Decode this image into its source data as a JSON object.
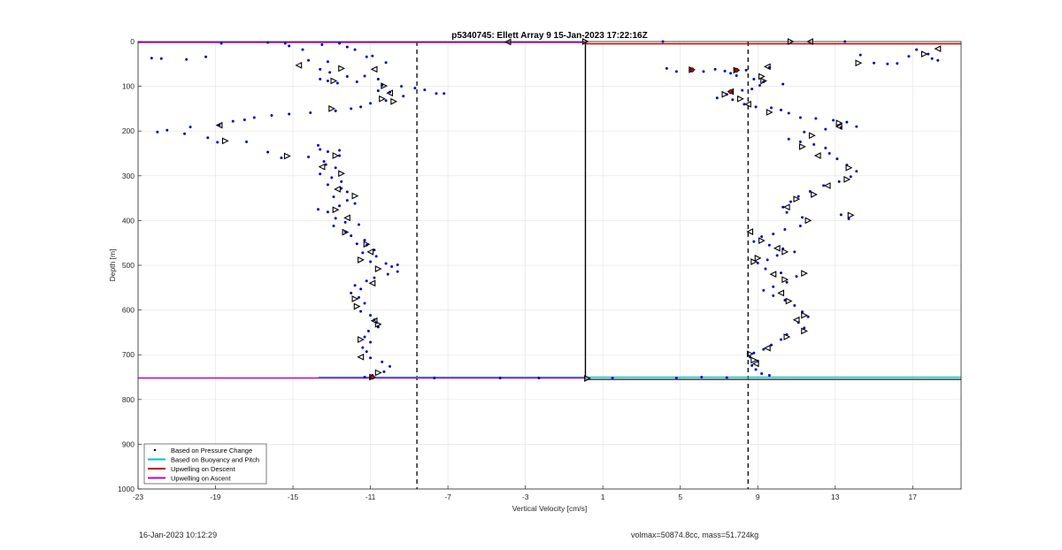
{
  "footer": {
    "timestamp": "16-Jan-2023 10:12:29",
    "stats": "volmax=50874.8cc, mass=51.724kg"
  },
  "chart_data": {
    "type": "scatter",
    "title": "p5340745: Ellett Array 9 15-Jan-2023 17:22:16Z",
    "xlabel": "Vertical Velocity [cm/s]",
    "ylabel": "Depth [m]",
    "xlim": [
      -23,
      19.5
    ],
    "ylim": [
      0,
      1000
    ],
    "y_reversed": true,
    "grid": true,
    "xticks": [
      -23,
      -19,
      -15,
      -11,
      -7,
      -3,
      1,
      5,
      9,
      13,
      17
    ],
    "yticks": [
      0,
      100,
      200,
      300,
      400,
      500,
      600,
      700,
      800,
      900,
      1000
    ],
    "legend": {
      "placement": "bottom-left",
      "entries": [
        {
          "label": "Based on Pressure Change",
          "marker": "dot",
          "color": "#000000"
        },
        {
          "label": "Based on Buoyancy and Pitch",
          "marker": "line",
          "color": "#00c0c0"
        },
        {
          "label": "Upwelling on Descent",
          "marker": "line",
          "color": "#c00000"
        },
        {
          "label": "Upwelling on Ascent",
          "marker": "line",
          "color": "#c000c0"
        }
      ]
    },
    "reference_lines": {
      "solid_vertical_x": 0.1,
      "dashed_vertical_x": [
        -8.6,
        8.5
      ],
      "surface_depth": 2,
      "bottom_depth": 752
    },
    "series": [
      {
        "name": "Based on Pressure Change",
        "color": "#0000ff",
        "points": [
          [
            -22.3,
            37
          ],
          [
            -21.8,
            38
          ],
          [
            -20.5,
            40
          ],
          [
            -19.5,
            34
          ],
          [
            -18.7,
            4
          ],
          [
            -16.3,
            2
          ],
          [
            -15.4,
            4
          ],
          [
            -15.2,
            10
          ],
          [
            -14.5,
            18
          ],
          [
            -14.2,
            42
          ],
          [
            -13.5,
            7
          ],
          [
            -13.2,
            45
          ],
          [
            -12.6,
            4
          ],
          [
            -12.2,
            12
          ],
          [
            -11.8,
            18
          ],
          [
            -11.2,
            34
          ],
          [
            -10.9,
            32
          ],
          [
            -10.2,
            47
          ],
          [
            -13.6,
            62
          ],
          [
            -13.1,
            69
          ],
          [
            -12.2,
            78
          ],
          [
            -11.3,
            77
          ],
          [
            -10.6,
            84
          ],
          [
            -13.6,
            84
          ],
          [
            -13.2,
            88
          ],
          [
            -12.7,
            93
          ],
          [
            -11.7,
            90
          ],
          [
            -10.4,
            98
          ],
          [
            -9.4,
            100
          ],
          [
            -8.7,
            104
          ],
          [
            -8.2,
            108
          ],
          [
            -7.6,
            116
          ],
          [
            -7.2,
            116
          ],
          [
            -10.6,
            110
          ],
          [
            -10.0,
            113
          ],
          [
            -9.3,
            122
          ],
          [
            -10.2,
            132
          ],
          [
            -11.0,
            138
          ],
          [
            -11.5,
            146
          ],
          [
            -12.0,
            150
          ],
          [
            -12.8,
            155
          ],
          [
            -14.1,
            159
          ],
          [
            -15.2,
            162
          ],
          [
            -16.1,
            165
          ],
          [
            -17.0,
            170
          ],
          [
            -17.5,
            175
          ],
          [
            -18.1,
            178
          ],
          [
            -18.8,
            186
          ],
          [
            -20.3,
            191
          ],
          [
            -21.5,
            198
          ],
          [
            -22.0,
            202
          ],
          [
            -20.6,
            206
          ],
          [
            -19.4,
            215
          ],
          [
            -18.9,
            225
          ],
          [
            -17.4,
            224
          ],
          [
            -16.3,
            247
          ],
          [
            -15.6,
            260
          ],
          [
            -14.2,
            258
          ],
          [
            -13.7,
            232
          ],
          [
            -13.6,
            241
          ],
          [
            -13.2,
            246
          ],
          [
            -12.6,
            243
          ],
          [
            -12.6,
            255
          ],
          [
            -13.4,
            268
          ],
          [
            -13.3,
            275
          ],
          [
            -12.8,
            282
          ],
          [
            -13.6,
            296
          ],
          [
            -13.0,
            304
          ],
          [
            -12.5,
            313
          ],
          [
            -13.2,
            320
          ],
          [
            -12.5,
            328
          ],
          [
            -12.2,
            336
          ],
          [
            -12.9,
            347
          ],
          [
            -12.2,
            355
          ],
          [
            -11.8,
            362
          ],
          [
            -12.6,
            367
          ],
          [
            -13.7,
            375
          ],
          [
            -13.2,
            381
          ],
          [
            -12.8,
            395
          ],
          [
            -12.3,
            404
          ],
          [
            -11.6,
            409
          ],
          [
            -12.9,
            412
          ],
          [
            -12.3,
            425
          ],
          [
            -12.0,
            434
          ],
          [
            -11.3,
            444
          ],
          [
            -11.7,
            452
          ],
          [
            -11.2,
            455
          ],
          [
            -10.8,
            466
          ],
          [
            -11.4,
            472
          ],
          [
            -10.7,
            480
          ],
          [
            -11.0,
            492
          ],
          [
            -10.2,
            496
          ],
          [
            -9.6,
            499
          ],
          [
            -9.9,
            503
          ],
          [
            -9.6,
            514
          ],
          [
            -10.1,
            520
          ],
          [
            -10.8,
            528
          ],
          [
            -11.2,
            535
          ],
          [
            -11.8,
            545
          ],
          [
            -11.5,
            553
          ],
          [
            -12.0,
            562
          ],
          [
            -11.6,
            572
          ],
          [
            -11.3,
            585
          ],
          [
            -11.5,
            603
          ],
          [
            -11.0,
            612
          ],
          [
            -10.8,
            622
          ],
          [
            -10.6,
            638
          ],
          [
            -11.1,
            647
          ],
          [
            -11.3,
            660
          ],
          [
            -11.0,
            672
          ],
          [
            -11.4,
            684
          ],
          [
            -11.2,
            693
          ],
          [
            -11.0,
            707
          ],
          [
            -10.4,
            716
          ],
          [
            -10.0,
            726
          ],
          [
            -10.3,
            738
          ],
          [
            -10.9,
            746
          ],
          [
            -11.3,
            750
          ],
          [
            -7.7,
            752
          ],
          [
            -4.3,
            752
          ],
          [
            -2.3,
            752
          ],
          [
            1.5,
            752
          ],
          [
            4.8,
            752
          ],
          [
            6.1,
            750
          ],
          [
            7.4,
            751
          ],
          [
            4.1,
            0
          ],
          [
            4.3,
            60
          ],
          [
            4.8,
            67
          ],
          [
            5.6,
            66
          ],
          [
            6.2,
            67
          ],
          [
            6.8,
            62
          ],
          [
            7.3,
            66
          ],
          [
            7.6,
            71
          ],
          [
            7.9,
            76
          ],
          [
            8.4,
            64
          ],
          [
            8.8,
            84
          ],
          [
            9.3,
            90
          ],
          [
            9.6,
            58
          ],
          [
            10.3,
            95
          ],
          [
            9.1,
            98
          ],
          [
            8.7,
            106
          ],
          [
            8.2,
            109
          ],
          [
            7.4,
            118
          ],
          [
            6.9,
            126
          ],
          [
            7.7,
            130
          ],
          [
            8.3,
            140
          ],
          [
            8.9,
            146
          ],
          [
            9.7,
            148
          ],
          [
            10.2,
            153
          ],
          [
            10.6,
            160
          ],
          [
            11.2,
            170
          ],
          [
            12.0,
            172
          ],
          [
            12.9,
            176
          ],
          [
            13.6,
            180
          ],
          [
            14.1,
            190
          ],
          [
            13.3,
            192
          ],
          [
            12.5,
            196
          ],
          [
            11.4,
            202
          ],
          [
            10.6,
            218
          ],
          [
            11.2,
            224
          ],
          [
            11.9,
            230
          ],
          [
            12.5,
            238
          ],
          [
            12.7,
            250
          ],
          [
            13.1,
            262
          ],
          [
            13.6,
            276
          ],
          [
            14.1,
            290
          ],
          [
            13.8,
            302
          ],
          [
            13.2,
            313
          ],
          [
            12.4,
            322
          ],
          [
            11.7,
            335
          ],
          [
            11.1,
            346
          ],
          [
            10.7,
            358
          ],
          [
            10.3,
            370
          ],
          [
            10.5,
            382
          ],
          [
            11.3,
            393
          ],
          [
            13.3,
            387
          ],
          [
            13.7,
            396
          ],
          [
            11.2,
            412
          ],
          [
            10.4,
            420
          ],
          [
            9.8,
            430
          ],
          [
            9.2,
            436
          ],
          [
            8.8,
            447
          ],
          [
            9.6,
            455
          ],
          [
            10.3,
            463
          ],
          [
            10.9,
            470
          ],
          [
            10.0,
            478
          ],
          [
            9.5,
            488
          ],
          [
            9.0,
            495
          ],
          [
            9.4,
            508
          ],
          [
            10.2,
            517
          ],
          [
            11.0,
            525
          ],
          [
            10.5,
            538
          ],
          [
            9.8,
            548
          ],
          [
            9.3,
            556
          ],
          [
            9.8,
            568
          ],
          [
            10.4,
            578
          ],
          [
            10.9,
            590
          ],
          [
            11.3,
            604
          ],
          [
            11.6,
            615
          ],
          [
            11.1,
            628
          ],
          [
            11.4,
            640
          ],
          [
            10.5,
            655
          ],
          [
            10.2,
            666
          ],
          [
            9.7,
            678
          ],
          [
            9.3,
            688
          ],
          [
            8.8,
            696
          ],
          [
            8.6,
            705
          ],
          [
            9.0,
            714
          ],
          [
            8.7,
            724
          ],
          [
            8.9,
            733
          ],
          [
            9.2,
            742
          ],
          [
            9.6,
            746
          ],
          [
            13.5,
            0
          ],
          [
            14.3,
            30
          ],
          [
            15.0,
            48
          ],
          [
            15.7,
            50
          ],
          [
            16.2,
            49
          ],
          [
            16.8,
            33
          ],
          [
            17.2,
            18
          ],
          [
            17.8,
            28
          ],
          [
            18.0,
            38
          ],
          [
            18.3,
            42
          ]
        ]
      },
      {
        "name": "Based on Buoyancy and Pitch",
        "color": "#000000",
        "points": [
          [
            -14.7,
            53
          ],
          [
            -12.9,
            88
          ],
          [
            -10.3,
            99
          ],
          [
            -10.0,
            115
          ],
          [
            -10.4,
            128
          ],
          [
            -9.8,
            134
          ],
          [
            -10.8,
            62
          ],
          [
            -12.5,
            60
          ],
          [
            -13.0,
            150
          ],
          [
            -18.8,
            187
          ],
          [
            -18.5,
            222
          ],
          [
            -15.3,
            256
          ],
          [
            -13.5,
            280
          ],
          [
            -12.8,
            255
          ],
          [
            -12.5,
            295
          ],
          [
            -12.7,
            330
          ],
          [
            -11.8,
            345
          ],
          [
            -12.8,
            376
          ],
          [
            -12.2,
            394
          ],
          [
            -12.3,
            426
          ],
          [
            -11.2,
            453
          ],
          [
            -11.0,
            470
          ],
          [
            -11.5,
            488
          ],
          [
            -10.6,
            508
          ],
          [
            -10.9,
            540
          ],
          [
            -11.8,
            575
          ],
          [
            -11.7,
            592
          ],
          [
            -10.8,
            624
          ],
          [
            -10.6,
            632
          ],
          [
            -11.5,
            666
          ],
          [
            -11.5,
            705
          ],
          [
            -10.6,
            740
          ],
          [
            -10.9,
            750
          ],
          [
            -3.9,
            1
          ],
          [
            0.1,
            0
          ],
          [
            10.7,
            0
          ],
          [
            11.7,
            0
          ],
          [
            5.6,
            63
          ],
          [
            7.9,
            64
          ],
          [
            9.5,
            56
          ],
          [
            9.2,
            78
          ],
          [
            9.3,
            88
          ],
          [
            7.6,
            112
          ],
          [
            7.3,
            118
          ],
          [
            8.1,
            128
          ],
          [
            8.5,
            140
          ],
          [
            9.6,
            158
          ],
          [
            13.2,
            182
          ],
          [
            13.2,
            190
          ],
          [
            11.8,
            210
          ],
          [
            11.3,
            235
          ],
          [
            12.1,
            255
          ],
          [
            13.7,
            282
          ],
          [
            13.6,
            308
          ],
          [
            12.6,
            322
          ],
          [
            11.9,
            342
          ],
          [
            11.0,
            352
          ],
          [
            10.5,
            370
          ],
          [
            13.8,
            388
          ],
          [
            11.6,
            400
          ],
          [
            8.6,
            425
          ],
          [
            9.2,
            445
          ],
          [
            10.4,
            470
          ],
          [
            10.0,
            462
          ],
          [
            9.0,
            484
          ],
          [
            8.8,
            492
          ],
          [
            9.8,
            520
          ],
          [
            11.4,
            518
          ],
          [
            10.4,
            532
          ],
          [
            10.2,
            562
          ],
          [
            10.6,
            580
          ],
          [
            11.4,
            612
          ],
          [
            11.0,
            622
          ],
          [
            11.4,
            647
          ],
          [
            10.5,
            660
          ],
          [
            9.5,
            685
          ],
          [
            8.6,
            698
          ],
          [
            8.8,
            712
          ],
          [
            8.9,
            720
          ],
          [
            14.2,
            48
          ],
          [
            17.6,
            28
          ],
          [
            18.3,
            16
          ],
          [
            0.2,
            753
          ]
        ]
      }
    ]
  }
}
